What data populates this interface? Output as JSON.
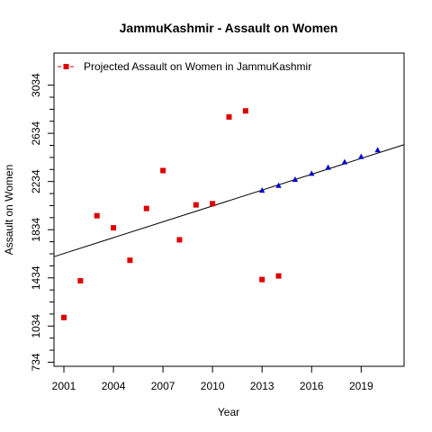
{
  "chart_data": {
    "type": "scatter",
    "title": "JammuKashmir  -  Assault on Women",
    "xlabel": "Year",
    "ylabel": "Assault on Women",
    "xlim": [
      2000.4,
      2021.6
    ],
    "ylim": [
      700,
      3300
    ],
    "x_ticks": [
      2001,
      2004,
      2007,
      2010,
      2013,
      2016,
      2019
    ],
    "y_ticks": [
      734,
      1034,
      1434,
      1834,
      2234,
      2634,
      3034
    ],
    "grid": false,
    "legend": {
      "position": "top-left",
      "entries": [
        {
          "label": "Projected  Assault on Women  in  JammuKashmir",
          "color": "#dd0000",
          "marker": "square"
        }
      ]
    },
    "series": [
      {
        "name": "Projected  Assault on Women  in  JammuKashmir",
        "color": "#dd0000",
        "marker": "square",
        "x": [
          2001,
          2002,
          2003,
          2004,
          2005,
          2006,
          2007,
          2008,
          2009,
          2010,
          2011,
          2012,
          2013,
          2014
        ],
        "y": [
          1105,
          1410,
          1950,
          1850,
          1580,
          2010,
          2325,
          1750,
          2040,
          2050,
          2770,
          2820,
          1420,
          1450
        ]
      },
      {
        "color": "#0000cc",
        "marker": "triangle",
        "x": [
          2013,
          2014,
          2015,
          2016,
          2017,
          2018,
          2019,
          2020
        ],
        "y": [
          2160,
          2200,
          2250,
          2300,
          2350,
          2395,
          2440,
          2495
        ]
      }
    ],
    "trend_line": {
      "x": [
        2000.4,
        2021.6
      ],
      "y": [
        1610,
        2540
      ],
      "color": "#000000"
    }
  }
}
